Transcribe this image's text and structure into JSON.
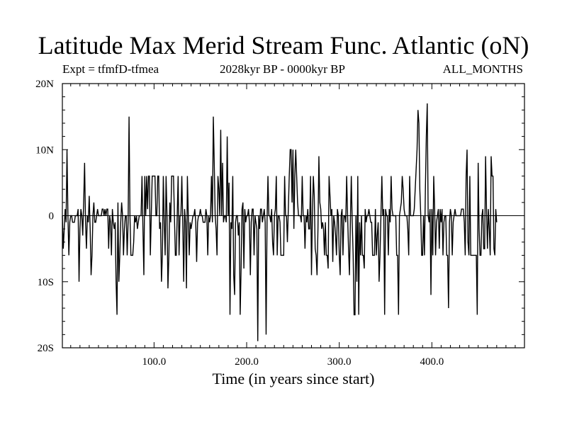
{
  "header": {
    "title": "Latitude Max Merid Stream Func. Atlantic (oN)",
    "experiment": "Expt = tfmfD-tfmea",
    "period": "2028kyr BP - 0000kyr BP",
    "months": "ALL_MONTHS"
  },
  "chart_data": {
    "type": "line",
    "title": "Latitude Max Merid Stream Func. Atlantic (oN)",
    "xlabel": "Time (in years since start)",
    "ylabel": "",
    "xlim": [
      1,
      500
    ],
    "ylim": [
      -20,
      20
    ],
    "x_ticks": [
      100,
      200,
      300,
      400
    ],
    "x_tick_labels": [
      "100.0",
      "200.0",
      "300.0",
      "400.0"
    ],
    "y_ticks": [
      20,
      10,
      0,
      -10,
      -20
    ],
    "y_tick_labels": [
      "20N",
      "10N",
      "0",
      "10S",
      "20S"
    ],
    "grid": false,
    "series": [
      {
        "name": "tfmfD-tfmea",
        "x_start": 1,
        "x_step": 1,
        "values": [
          0,
          -5,
          -2,
          1,
          -1,
          10,
          0,
          -6,
          -1,
          0,
          0,
          -1,
          -1,
          -1,
          0,
          0,
          0,
          1,
          -10,
          -2,
          1,
          0,
          -3,
          2,
          8,
          -1,
          -5,
          0,
          -1,
          3,
          -2,
          -9,
          -6,
          0,
          2,
          -1,
          -1,
          0,
          1,
          0,
          0,
          0,
          0,
          1,
          1,
          0,
          1,
          0,
          1,
          1,
          -5,
          0,
          -1,
          -6,
          1,
          -1,
          -2,
          -1,
          -10,
          -15,
          2,
          -10,
          -6,
          -1,
          2,
          0,
          -6,
          -2,
          0,
          0,
          -6,
          -1,
          15,
          0,
          -6,
          -6,
          -6,
          -4,
          0,
          -1,
          0,
          -2,
          -1,
          0,
          0,
          0,
          6,
          -2,
          -9,
          6,
          0,
          6,
          1,
          6,
          6,
          -6,
          0,
          6,
          6,
          6,
          6,
          0,
          0,
          6,
          6,
          -2,
          -1,
          -10,
          -6,
          6,
          -1,
          -6,
          6,
          0,
          -11,
          -6,
          2,
          -1,
          6,
          6,
          6,
          0,
          -6,
          -6,
          0,
          6,
          -6,
          0,
          0,
          6,
          -1,
          -10,
          1,
          -1,
          -11,
          6,
          0,
          -6,
          -1,
          -2,
          -1,
          0,
          0,
          1,
          -1,
          -7,
          -1,
          0,
          0,
          1,
          0,
          0,
          -1,
          -1,
          -1,
          1,
          0,
          -6,
          0,
          -1,
          0,
          6,
          -1,
          15,
          8,
          0,
          -2,
          -6,
          6,
          4,
          0,
          13,
          0,
          8,
          -1,
          0,
          0,
          -1,
          12,
          0,
          5,
          -15,
          -1,
          -2,
          6,
          -9,
          -12,
          -1,
          0,
          0,
          -3,
          -1,
          -15,
          -8,
          1,
          2,
          -8,
          1,
          -1,
          0,
          0,
          1,
          -1,
          -9,
          -1,
          1,
          1,
          -6,
          0,
          -1,
          -2,
          -19,
          0,
          -2,
          1,
          1,
          -1,
          0,
          1,
          -1,
          -18,
          -1,
          6,
          0,
          0,
          -1,
          1,
          -4,
          -6,
          0,
          1,
          6,
          -6,
          0,
          0,
          -1,
          -6,
          -6,
          -6,
          -6,
          6,
          0,
          0,
          -4,
          1,
          6,
          10,
          10,
          2,
          10,
          -2,
          6,
          10,
          6,
          2,
          0,
          0,
          0,
          -1,
          6,
          0,
          0,
          -5,
          0,
          -1,
          1,
          -2,
          -2,
          6,
          -9,
          0,
          6,
          3,
          -5,
          -6,
          -9,
          -2,
          9,
          2,
          1,
          -2,
          -1,
          -2,
          -6,
          -1,
          -6,
          -6,
          -8,
          6,
          3,
          0,
          1,
          -7,
          0,
          -1,
          -3,
          -6,
          1,
          0,
          -6,
          -9,
          0,
          1,
          -6,
          0,
          0,
          -1,
          6,
          0,
          -5,
          -9,
          -1,
          6,
          -1,
          -6,
          -15,
          -15,
          0,
          -10,
          6,
          -15,
          -1,
          -6,
          0,
          -6,
          -6,
          -8,
          1,
          -1,
          0,
          0,
          1,
          0,
          -1,
          -1,
          -6,
          -6,
          -6,
          1,
          -6,
          -3,
          -1,
          -10,
          -6,
          0,
          6,
          0,
          1,
          -15,
          1,
          0,
          0,
          -6,
          1,
          -1,
          6,
          1,
          0,
          0,
          0,
          0,
          -6,
          -6,
          -15,
          0,
          1,
          2,
          6,
          4,
          1,
          0,
          0,
          0,
          -2,
          -6,
          6,
          0,
          0,
          0,
          0,
          1,
          4,
          7,
          10,
          16,
          14,
          4,
          0,
          -6,
          -6,
          0,
          -6,
          4,
          12,
          17,
          0,
          -1,
          1,
          -12,
          1,
          -6,
          6,
          1,
          -6,
          -1,
          0,
          1,
          -5,
          1,
          -1,
          1,
          -6,
          -1,
          0,
          0,
          -6,
          -6,
          -14,
          -1,
          1,
          0,
          -6,
          -1,
          0,
          1,
          0,
          0,
          0,
          0,
          0,
          0,
          1,
          1,
          1,
          -1,
          -6,
          6,
          10,
          -4,
          -6,
          6,
          -6,
          -6,
          -6,
          -6,
          -6,
          -6,
          -6,
          -15,
          8,
          -2,
          -6,
          -6,
          0,
          1,
          -5,
          -5,
          9,
          1,
          -5,
          1,
          -2,
          -6,
          9,
          6,
          6,
          -5,
          -6,
          1,
          -1
        ]
      }
    ]
  }
}
